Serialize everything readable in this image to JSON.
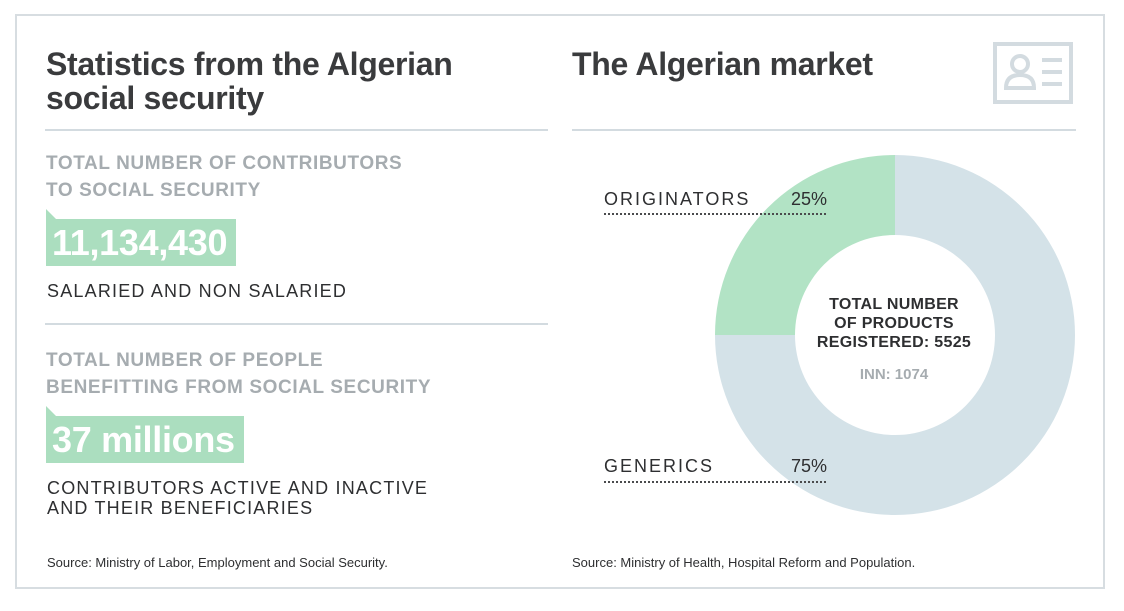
{
  "left": {
    "title_line1": "Statistics from the Algerian",
    "title_line2": "social security",
    "stat1": {
      "label_line1": "TOTAL NUMBER OF CONTRIBUTORS",
      "label_line2": "TO SOCIAL SECURITY",
      "value": "11,134,430",
      "description": "SALARIED AND NON SALARIED"
    },
    "stat2": {
      "label_line1": "TOTAL NUMBER OF PEOPLE",
      "label_line2": "BENEFITTING FROM SOCIAL SECURITY",
      "value": "37 millions",
      "description_line1": "CONTRIBUTORS ACTIVE AND INACTIVE",
      "description_line2": "AND THEIR BENEFICIARIES"
    },
    "source": "Source: Ministry of Labor, Employment and Social Security."
  },
  "right": {
    "title": "The Algerian market",
    "center_line1": "TOTAL NUMBER",
    "center_line2": "OF PRODUCTS",
    "center_line3": "REGISTERED: 5525",
    "center_sub": "INN: 1074",
    "source": "Source: Ministry of Health, Hospital Reform and Population.",
    "icon": "id-card-icon"
  },
  "colors": {
    "accent_green": "#abdebf",
    "donut_green": "#b2e3c5",
    "donut_blue": "#d4e2e8",
    "label_gray": "#a6acb0",
    "text_dark": "#3a3b3d"
  },
  "chart_data": {
    "type": "pie",
    "subtype": "donut",
    "categories": [
      "ORIGINATORS",
      "GENERICS"
    ],
    "values": [
      25,
      75
    ],
    "value_labels": [
      "25%",
      "75%"
    ],
    "colors": [
      "#b2e3c5",
      "#d4e2e8"
    ]
  }
}
